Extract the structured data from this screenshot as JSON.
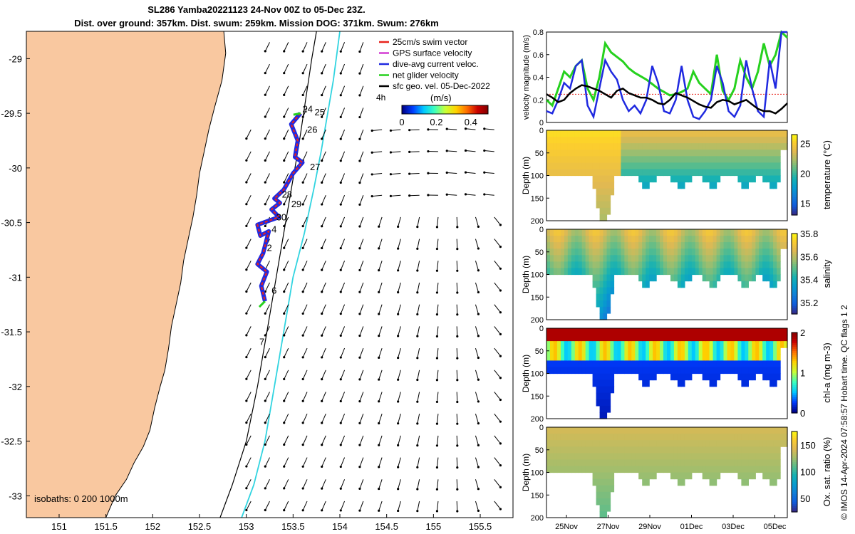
{
  "title": {
    "line1": "SL286 Yamba20221123 24-Nov 00Z to 05-Dec 23Z.",
    "line2": "Dist. over ground: 357km. Dist. swum: 259km. Mission DOG: 371km. Swum: 276km"
  },
  "footer_note": "© IMOS 14-Apr-2024 07:58:57 Hobart time. QC flags 1  2",
  "colors": {
    "land": "#f9c8a0",
    "track_red": "#e8231b",
    "track_blue": "#1f29e0",
    "net_green": "#26d11e",
    "isobath_cyan": "#31d4e0",
    "gps_magenta": "#d23cd2"
  },
  "chart_data": [
    {
      "type": "map",
      "name": "track-map",
      "x_ticks": [
        "151",
        "151.5",
        "152",
        "152.5",
        "153",
        "153.5",
        "154",
        "154.5",
        "155",
        "155.5"
      ],
      "y_ticks": [
        "-29",
        "-29.5",
        "-30",
        "-30.5",
        "-31",
        "-31.5",
        "-32",
        "-32.5",
        "-33"
      ],
      "xlim": [
        150.65,
        155.85
      ],
      "ylim": [
        -33.2,
        -28.75
      ],
      "legend": [
        {
          "label": "25cm/s swim vector",
          "color": "#e8231b"
        },
        {
          "label": "GPS surface velocity",
          "color": "#d23cd2"
        },
        {
          "label": "dive-avg current veloc.",
          "color": "#1f29e0"
        },
        {
          "label": "net glider velocity",
          "color": "#26d11e"
        },
        {
          "label": "sfc geo. vel. 05-Dec-2022",
          "color": "#000000"
        }
      ],
      "legend_position": "top-right",
      "legend_extra": "4h",
      "colorbar": {
        "label": "(m/s)",
        "ticks": [
          "0",
          "0.2",
          "0.4"
        ],
        "range": [
          0,
          0.5
        ]
      },
      "isobath_note": "isobaths: 0   200   1000m",
      "day_labels": [
        {
          "text": "24",
          "lon": 153.6,
          "lat": -29.49
        },
        {
          "text": "25",
          "lon": 153.73,
          "lat": -29.52
        },
        {
          "text": "26",
          "lon": 153.65,
          "lat": -29.68
        },
        {
          "text": "27",
          "lon": 153.68,
          "lat": -30.02
        },
        {
          "text": "28",
          "lon": 153.38,
          "lat": -30.27
        },
        {
          "text": "29",
          "lon": 153.48,
          "lat": -30.36
        },
        {
          "text": "30",
          "lon": 153.32,
          "lat": -30.48
        },
        {
          "text": "4",
          "lon": 153.27,
          "lat": -30.59
        },
        {
          "text": "2",
          "lon": 153.22,
          "lat": -30.76
        },
        {
          "text": "6",
          "lon": 153.27,
          "lat": -31.15
        },
        {
          "text": "7",
          "lon": 153.14,
          "lat": -31.62
        }
      ],
      "track": [
        [
          153.58,
          -29.5
        ],
        [
          153.48,
          -29.6
        ],
        [
          153.55,
          -29.75
        ],
        [
          153.52,
          -29.9
        ],
        [
          153.6,
          -29.95
        ],
        [
          153.5,
          -30.05
        ],
        [
          153.4,
          -30.2
        ],
        [
          153.3,
          -30.28
        ],
        [
          153.36,
          -30.32
        ],
        [
          153.27,
          -30.38
        ],
        [
          153.35,
          -30.45
        ],
        [
          153.12,
          -30.52
        ],
        [
          153.15,
          -30.62
        ],
        [
          153.24,
          -30.58
        ],
        [
          153.18,
          -30.78
        ],
        [
          153.12,
          -30.88
        ],
        [
          153.22,
          -30.95
        ],
        [
          153.16,
          -31.08
        ],
        [
          153.2,
          -31.22
        ]
      ]
    },
    {
      "type": "line",
      "name": "velocity-magnitude",
      "ylabel": "velocity magnitude (m/s)",
      "ylim": [
        0,
        0.8
      ],
      "y_ticks": [
        "0",
        "0.2",
        "0.4",
        "0.6",
        "0.8"
      ],
      "xlim": [
        0,
        12
      ],
      "threshold": 0.25,
      "series": [
        {
          "color": "#26d11e",
          "values": [
            0.2,
            0.15,
            0.3,
            0.45,
            0.4,
            0.5,
            0.55,
            0.3,
            0.2,
            0.4,
            0.7,
            0.62,
            0.58,
            0.54,
            0.48,
            0.44,
            0.41,
            0.38,
            0.34,
            0.3,
            0.27,
            0.24,
            0.25,
            0.27,
            0.3,
            0.45,
            0.35,
            0.3,
            0.25,
            0.6,
            0.28,
            0.2,
            0.3,
            0.55,
            0.4,
            0.3,
            0.45,
            0.7,
            0.5,
            0.6,
            0.8,
            0.75
          ]
        },
        {
          "color": "#1f29e0",
          "values": [
            0.1,
            0.08,
            0.2,
            0.35,
            0.3,
            0.5,
            0.55,
            0.15,
            0.05,
            0.3,
            0.55,
            0.45,
            0.38,
            0.2,
            0.1,
            0.15,
            0.08,
            0.2,
            0.5,
            0.35,
            0.1,
            0.08,
            0.2,
            0.5,
            0.2,
            0.05,
            0.03,
            0.1,
            0.2,
            0.5,
            0.35,
            0.1,
            0.05,
            0.15,
            0.55,
            0.3,
            0.1,
            0.05,
            0.55,
            0.3,
            0.85,
            0.8
          ]
        },
        {
          "color": "#000000",
          "values": [
            0.25,
            0.22,
            0.18,
            0.2,
            0.26,
            0.3,
            0.33,
            0.32,
            0.3,
            0.28,
            0.25,
            0.22,
            0.28,
            0.3,
            0.26,
            0.24,
            0.22,
            0.22,
            0.2,
            0.17,
            0.16,
            0.2,
            0.26,
            0.24,
            0.22,
            0.19,
            0.16,
            0.14,
            0.13,
            0.18,
            0.2,
            0.19,
            0.16,
            0.18,
            0.2,
            0.16,
            0.12,
            0.1,
            0.1,
            0.08,
            0.12,
            0.17
          ]
        }
      ]
    },
    {
      "type": "heatmap",
      "name": "temperature",
      "ylabel": "Depth (m)",
      "cbar_label": "temperature (°C)",
      "cbar_ticks": [
        "15",
        "20",
        "25"
      ],
      "range": [
        13,
        26.5
      ],
      "y_ticks": [
        "0",
        "50",
        "100",
        "150",
        "200"
      ]
    },
    {
      "type": "heatmap",
      "name": "salinity",
      "ylabel": "Depth (m)",
      "cbar_label": "salinity",
      "cbar_ticks": [
        "35.2",
        "35.4",
        "35.6",
        "35.8"
      ],
      "range": [
        35.1,
        35.8
      ],
      "y_ticks": [
        "0",
        "50",
        "100",
        "150",
        "200"
      ]
    },
    {
      "type": "heatmap",
      "name": "chlorophyll",
      "ylabel": "Depth (m)",
      "cbar_label": "chl-a (mg m-3)",
      "cbar_ticks": [
        "0",
        "1",
        "2"
      ],
      "range": [
        0,
        2
      ],
      "y_ticks": [
        "0",
        "50",
        "100",
        "150",
        "200"
      ]
    },
    {
      "type": "heatmap",
      "name": "oxygen",
      "ylabel": "Depth (m)",
      "cbar_label": "Ox. sat. ratio (%)",
      "cbar_ticks": [
        "50",
        "100",
        "150"
      ],
      "range": [
        25,
        175
      ],
      "y_ticks": [
        "0",
        "50",
        "100",
        "150",
        "200"
      ],
      "x_ticks": [
        "25Nov",
        "27Nov",
        "29Nov",
        "01Dec",
        "03Dec",
        "05Dec"
      ]
    }
  ]
}
